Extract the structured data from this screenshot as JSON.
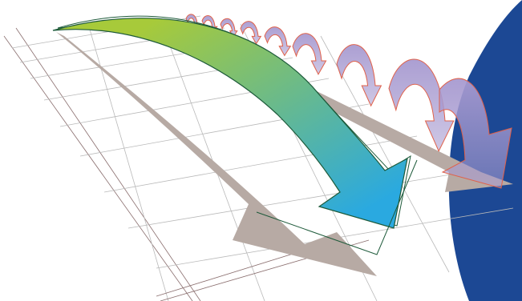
{
  "illustration": {
    "colors": {
      "background": "#ffffff",
      "grid_line": "#b9b9b9",
      "grid_line_dark": "#8a6e6e",
      "shadow": "#b7aaa4",
      "big_arrow_start": "#a7ca3a",
      "big_arrow_end": "#2aa9e0",
      "big_arrow_outline": "#1d5a3a",
      "hop_arrow_fill": "#a79ad0",
      "hop_arrow_outline": "#e0614a",
      "globe": "#1c4894"
    },
    "big_arrow_count": 1,
    "hop_arrow_count": 8
  }
}
